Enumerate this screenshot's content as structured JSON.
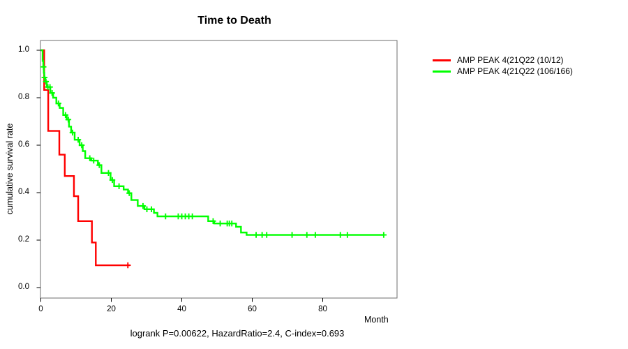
{
  "title": "Time to Death",
  "footer": "logrank P=0.00622, HazardRatio=2.4, C-index=0.693",
  "axes": {
    "x": {
      "unit_label": "Month",
      "ticks": [
        "0",
        "20",
        "40",
        "60",
        "80"
      ],
      "tick_values": [
        0,
        20,
        40,
        60,
        80
      ],
      "range": [
        0,
        101
      ]
    },
    "y": {
      "label": "cumulative survival rate",
      "ticks": [
        "0.0",
        "0.2",
        "0.4",
        "0.6",
        "0.8",
        "1.0"
      ],
      "tick_values": [
        0.0,
        0.2,
        0.4,
        0.6,
        0.8,
        1.0
      ],
      "range": [
        0,
        1
      ]
    }
  },
  "legend": {
    "items": [
      {
        "label": "AMP PEAK 4(21Q22 (10/12)",
        "color": "#ff0000"
      },
      {
        "label": "AMP PEAK 4(21Q22 (106/166)",
        "color": "#00ff00"
      }
    ]
  },
  "chart_data": {
    "type": "line",
    "subtype": "kaplan_meier_step",
    "title": "Time to Death",
    "xlabel": "Month",
    "ylabel": "cumulative survival rate",
    "xlim": [
      0,
      101
    ],
    "ylim": [
      0,
      1.04
    ],
    "grid": false,
    "legend_position": "right-outside-top",
    "annotation": "logrank P=0.00622, HazardRatio=2.4, C-index=0.693",
    "series": [
      {
        "name": "AMP PEAK 4(21Q22 (10/12)",
        "color": "#ff0000",
        "steps": [
          [
            0,
            1.0
          ],
          [
            0.95,
            0.833
          ],
          [
            2.1,
            0.66
          ],
          [
            5.25,
            0.56
          ],
          [
            6.8,
            0.47
          ],
          [
            9.4,
            0.385
          ],
          [
            10.6,
            0.28
          ],
          [
            14.5,
            0.19
          ],
          [
            15.6,
            0.094
          ]
        ],
        "end_month": 25.3,
        "censors": [
          [
            24.7,
            0.094
          ]
        ]
      },
      {
        "name": "AMP PEAK 4(21Q22 (106/166)",
        "color": "#00ff00",
        "steps": [
          [
            0,
            1.0
          ],
          [
            0.5,
            0.955
          ],
          [
            0.7,
            0.93
          ],
          [
            0.85,
            0.905
          ],
          [
            1.0,
            0.885
          ],
          [
            1.25,
            0.868
          ],
          [
            1.7,
            0.845
          ],
          [
            2.7,
            0.82
          ],
          [
            3.5,
            0.8
          ],
          [
            4.4,
            0.776
          ],
          [
            5.35,
            0.757
          ],
          [
            6.35,
            0.727
          ],
          [
            7.35,
            0.708
          ],
          [
            8.0,
            0.678
          ],
          [
            8.6,
            0.653
          ],
          [
            9.6,
            0.623
          ],
          [
            11.0,
            0.6
          ],
          [
            11.9,
            0.575
          ],
          [
            12.6,
            0.545
          ],
          [
            14.3,
            0.535
          ],
          [
            16.2,
            0.516
          ],
          [
            17.2,
            0.483
          ],
          [
            19.8,
            0.453
          ],
          [
            20.8,
            0.427
          ],
          [
            23.5,
            0.413
          ],
          [
            24.75,
            0.398
          ],
          [
            25.7,
            0.369
          ],
          [
            27.5,
            0.344
          ],
          [
            29.4,
            0.33
          ],
          [
            32.1,
            0.315
          ],
          [
            33.1,
            0.3
          ],
          [
            47.5,
            0.28
          ],
          [
            49.2,
            0.27
          ],
          [
            55.4,
            0.256
          ],
          [
            56.8,
            0.232
          ],
          [
            58.4,
            0.222
          ]
        ],
        "end_month": 97.5,
        "censors": [
          [
            0.75,
            0.93
          ],
          [
            1.05,
            0.885
          ],
          [
            1.45,
            0.868
          ],
          [
            2.0,
            0.845
          ],
          [
            2.6,
            0.845
          ],
          [
            3.2,
            0.82
          ],
          [
            5.0,
            0.776
          ],
          [
            7.0,
            0.727
          ],
          [
            7.8,
            0.708
          ],
          [
            9.0,
            0.653
          ],
          [
            10.6,
            0.623
          ],
          [
            11.6,
            0.6
          ],
          [
            13.9,
            0.545
          ],
          [
            15.0,
            0.535
          ],
          [
            16.6,
            0.516
          ],
          [
            19.2,
            0.483
          ],
          [
            20.3,
            0.453
          ],
          [
            22.2,
            0.427
          ],
          [
            25.1,
            0.398
          ],
          [
            29.0,
            0.344
          ],
          [
            30.1,
            0.33
          ],
          [
            31.4,
            0.33
          ],
          [
            35.4,
            0.3
          ],
          [
            39,
            0.3
          ],
          [
            40,
            0.3
          ],
          [
            41,
            0.3
          ],
          [
            42,
            0.3
          ],
          [
            43,
            0.3
          ],
          [
            48.9,
            0.28
          ],
          [
            50.9,
            0.27
          ],
          [
            52.9,
            0.27
          ],
          [
            53.5,
            0.27
          ],
          [
            54.2,
            0.27
          ],
          [
            61.1,
            0.222
          ],
          [
            62.8,
            0.222
          ],
          [
            64.1,
            0.222
          ],
          [
            71.3,
            0.222
          ],
          [
            75.5,
            0.222
          ],
          [
            77.9,
            0.222
          ],
          [
            85.0,
            0.222
          ],
          [
            87.0,
            0.222
          ],
          [
            97.3,
            0.222
          ]
        ]
      }
    ]
  }
}
